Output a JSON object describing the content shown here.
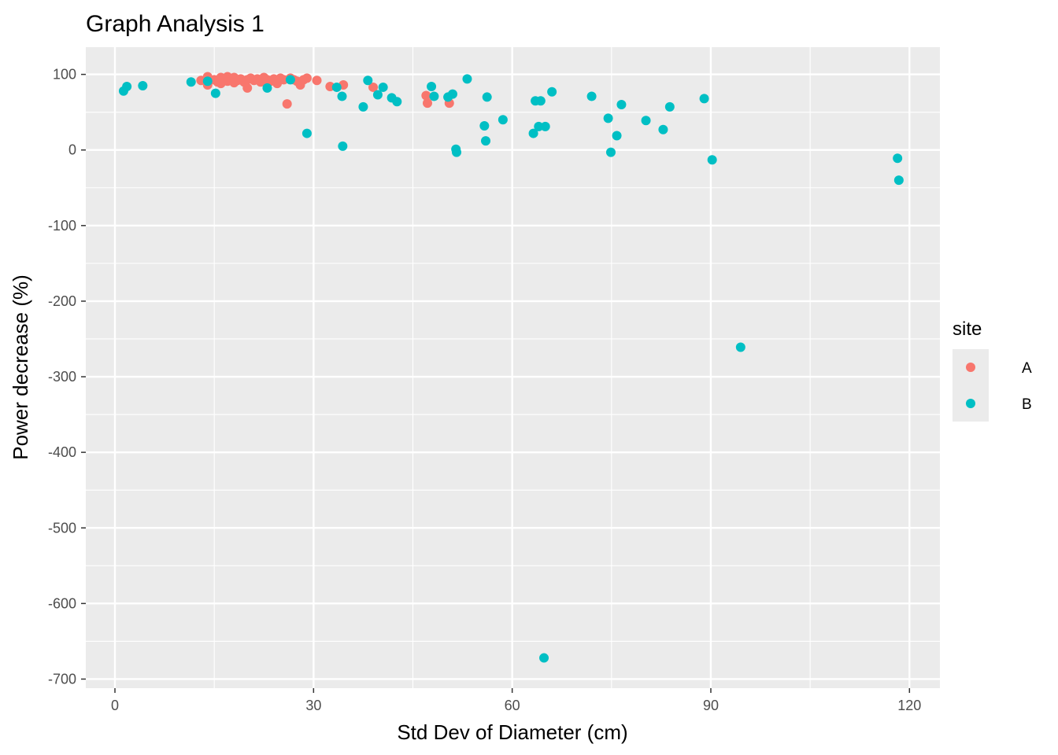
{
  "chart_data": {
    "type": "scatter",
    "title": "Graph Analysis 1",
    "xlabel": "Std Dev of Diameter (cm)",
    "ylabel": "Power decrease (%)",
    "xlim": [
      -4.4,
      124.6
    ],
    "ylim": [
      -712,
      136
    ],
    "x_ticks": [
      0,
      30,
      60,
      90,
      120
    ],
    "y_ticks": [
      100,
      0,
      -100,
      -200,
      -300,
      -400,
      -500,
      -600,
      -700
    ],
    "grid": true,
    "legend": {
      "title": "site",
      "position": "right"
    },
    "colors": {
      "panel": "#EBEBEB",
      "grid": "#FFFFFF",
      "A": "#F8766D",
      "B": "#00BFC4"
    },
    "series": [
      {
        "name": "A",
        "color": "#F8766D",
        "points": [
          [
            13,
            92
          ],
          [
            14,
            97
          ],
          [
            14,
            86
          ],
          [
            15,
            93
          ],
          [
            15.5,
            90
          ],
          [
            16,
            96
          ],
          [
            16,
            88
          ],
          [
            16.5,
            94
          ],
          [
            17,
            97
          ],
          [
            17,
            91
          ],
          [
            17.5,
            93
          ],
          [
            18,
            96
          ],
          [
            18,
            89
          ],
          [
            18.5,
            92
          ],
          [
            19,
            94
          ],
          [
            19.5,
            90
          ],
          [
            20,
            93
          ],
          [
            20,
            82
          ],
          [
            20.5,
            95
          ],
          [
            21,
            92
          ],
          [
            21.5,
            94
          ],
          [
            22,
            90
          ],
          [
            22.5,
            96
          ],
          [
            23,
            93
          ],
          [
            23.5,
            91
          ],
          [
            24,
            94
          ],
          [
            24.5,
            88
          ],
          [
            25,
            95
          ],
          [
            25.5,
            93
          ],
          [
            26,
            61
          ],
          [
            26.5,
            95
          ],
          [
            27,
            93
          ],
          [
            27.5,
            91
          ],
          [
            28,
            86
          ],
          [
            28.5,
            93
          ],
          [
            29,
            95
          ],
          [
            30.5,
            92
          ],
          [
            32.5,
            84
          ],
          [
            34.5,
            86
          ],
          [
            39,
            83
          ],
          [
            47,
            72
          ],
          [
            47.2,
            62
          ],
          [
            50.5,
            62
          ]
        ]
      },
      {
        "name": "B",
        "color": "#00BFC4",
        "points": [
          [
            1.3,
            78
          ],
          [
            1.8,
            84
          ],
          [
            4.2,
            85
          ],
          [
            11.5,
            90
          ],
          [
            14,
            91
          ],
          [
            15.2,
            75
          ],
          [
            23,
            82
          ],
          [
            26.5,
            93
          ],
          [
            29,
            22
          ],
          [
            33.5,
            83
          ],
          [
            34.3,
            71
          ],
          [
            34.4,
            5
          ],
          [
            37.5,
            57
          ],
          [
            38.2,
            92
          ],
          [
            39.7,
            73
          ],
          [
            40.5,
            83
          ],
          [
            41.8,
            69
          ],
          [
            42.6,
            64
          ],
          [
            47.8,
            84
          ],
          [
            48.2,
            71
          ],
          [
            50.3,
            70
          ],
          [
            51,
            74
          ],
          [
            51.5,
            1
          ],
          [
            51.6,
            -3
          ],
          [
            53.2,
            94
          ],
          [
            55.8,
            32
          ],
          [
            56,
            12
          ],
          [
            56.2,
            70
          ],
          [
            58.6,
            40
          ],
          [
            63.2,
            22
          ],
          [
            63.5,
            65
          ],
          [
            64,
            31
          ],
          [
            64.3,
            65
          ],
          [
            64.8,
            -672
          ],
          [
            65,
            31
          ],
          [
            66,
            77
          ],
          [
            72,
            71
          ],
          [
            74.5,
            42
          ],
          [
            74.9,
            -3
          ],
          [
            75.8,
            19
          ],
          [
            76.5,
            60
          ],
          [
            80.2,
            39
          ],
          [
            82.8,
            27
          ],
          [
            83.8,
            57
          ],
          [
            89,
            68
          ],
          [
            90.2,
            -13
          ],
          [
            94.5,
            -261
          ],
          [
            118.2,
            -11
          ],
          [
            118.4,
            -40
          ]
        ]
      }
    ]
  }
}
